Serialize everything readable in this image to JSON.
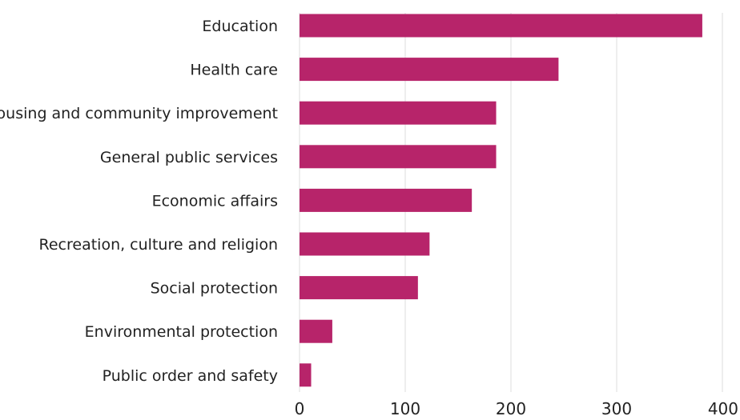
{
  "chart_data": {
    "type": "bar",
    "orientation": "horizontal",
    "categories": [
      "Education",
      "Health care",
      "Housing and community improvement",
      "General public services",
      "Economic affairs",
      "Recreation, culture and religion",
      "Social protection",
      "Environmental protection",
      "Public order and safety"
    ],
    "values": [
      381,
      245,
      186,
      186,
      163,
      123,
      112,
      31,
      11
    ],
    "xlim": [
      0,
      400
    ],
    "xticks": [
      0,
      100,
      200,
      300,
      400
    ],
    "title": "",
    "xlabel": "",
    "ylabel": "",
    "grid": "vertical",
    "legend": "none",
    "bar_color": "#b7246a"
  }
}
